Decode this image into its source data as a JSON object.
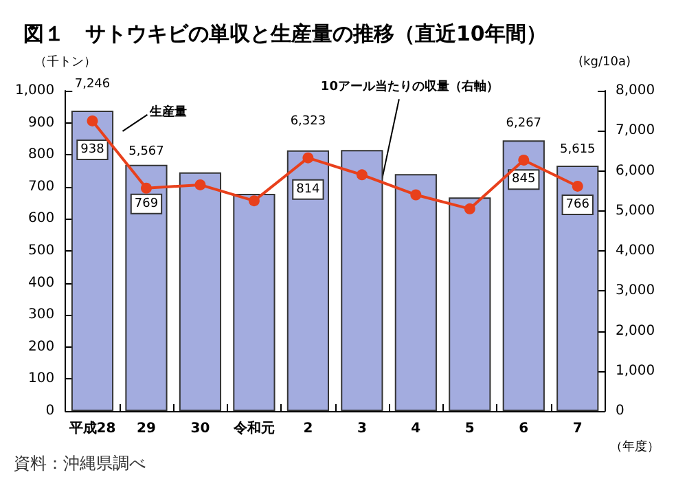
{
  "chart_data": {
    "type": "bar",
    "title": "図１　サトウキビの単収と生産量の推移（直近10年間）",
    "ylabel": "（千トン）",
    "y2label": "(kg/10a)",
    "xlabel": "（年度）",
    "annotations": [
      "資料：沖縄県調べ"
    ],
    "categories": [
      "平成28",
      "29",
      "30",
      "令和元",
      "2",
      "3",
      "4",
      "5",
      "6",
      "7"
    ],
    "series": [
      {
        "name": "生産量",
        "color": "#a3acdf",
        "values": [
          938,
          769,
          745,
          678,
          814,
          815,
          740,
          667,
          845,
          766
        ],
        "value_labels": [
          "938",
          "769",
          null,
          null,
          "814",
          null,
          null,
          null,
          "845",
          "766"
        ]
      },
      {
        "name": "10アール当たりの収量（右軸）",
        "type": "line",
        "axis": "y2",
        "color": "#e8401c",
        "values": [
          7246,
          5567,
          5650,
          5250,
          6323,
          5900,
          5400,
          5050,
          6267,
          5615
        ],
        "value_labels": [
          "7,246",
          "5,567",
          null,
          null,
          "6,323",
          null,
          null,
          null,
          "6,267",
          "5,615"
        ]
      }
    ],
    "ylim": [
      0,
      1000
    ],
    "yticks": [
      0,
      100,
      200,
      300,
      400,
      500,
      600,
      700,
      800,
      900,
      {
        "value": 1000,
        "label": "1,000"
      }
    ],
    "y2lim": [
      0,
      8000
    ],
    "y2ticks": [
      0,
      {
        "value": 1000,
        "label": "1,000"
      },
      {
        "value": 2000,
        "label": "2,000"
      },
      {
        "value": 3000,
        "label": "3,000"
      },
      {
        "value": 4000,
        "label": "4,000"
      },
      {
        "value": 5000,
        "label": "5,000"
      },
      {
        "value": 6000,
        "label": "6,000"
      },
      {
        "value": 7000,
        "label": "7,000"
      },
      {
        "value": 8000,
        "label": "8,000"
      }
    ],
    "grid": false,
    "legend": false,
    "marker": "circle",
    "line_style": "solid"
  }
}
